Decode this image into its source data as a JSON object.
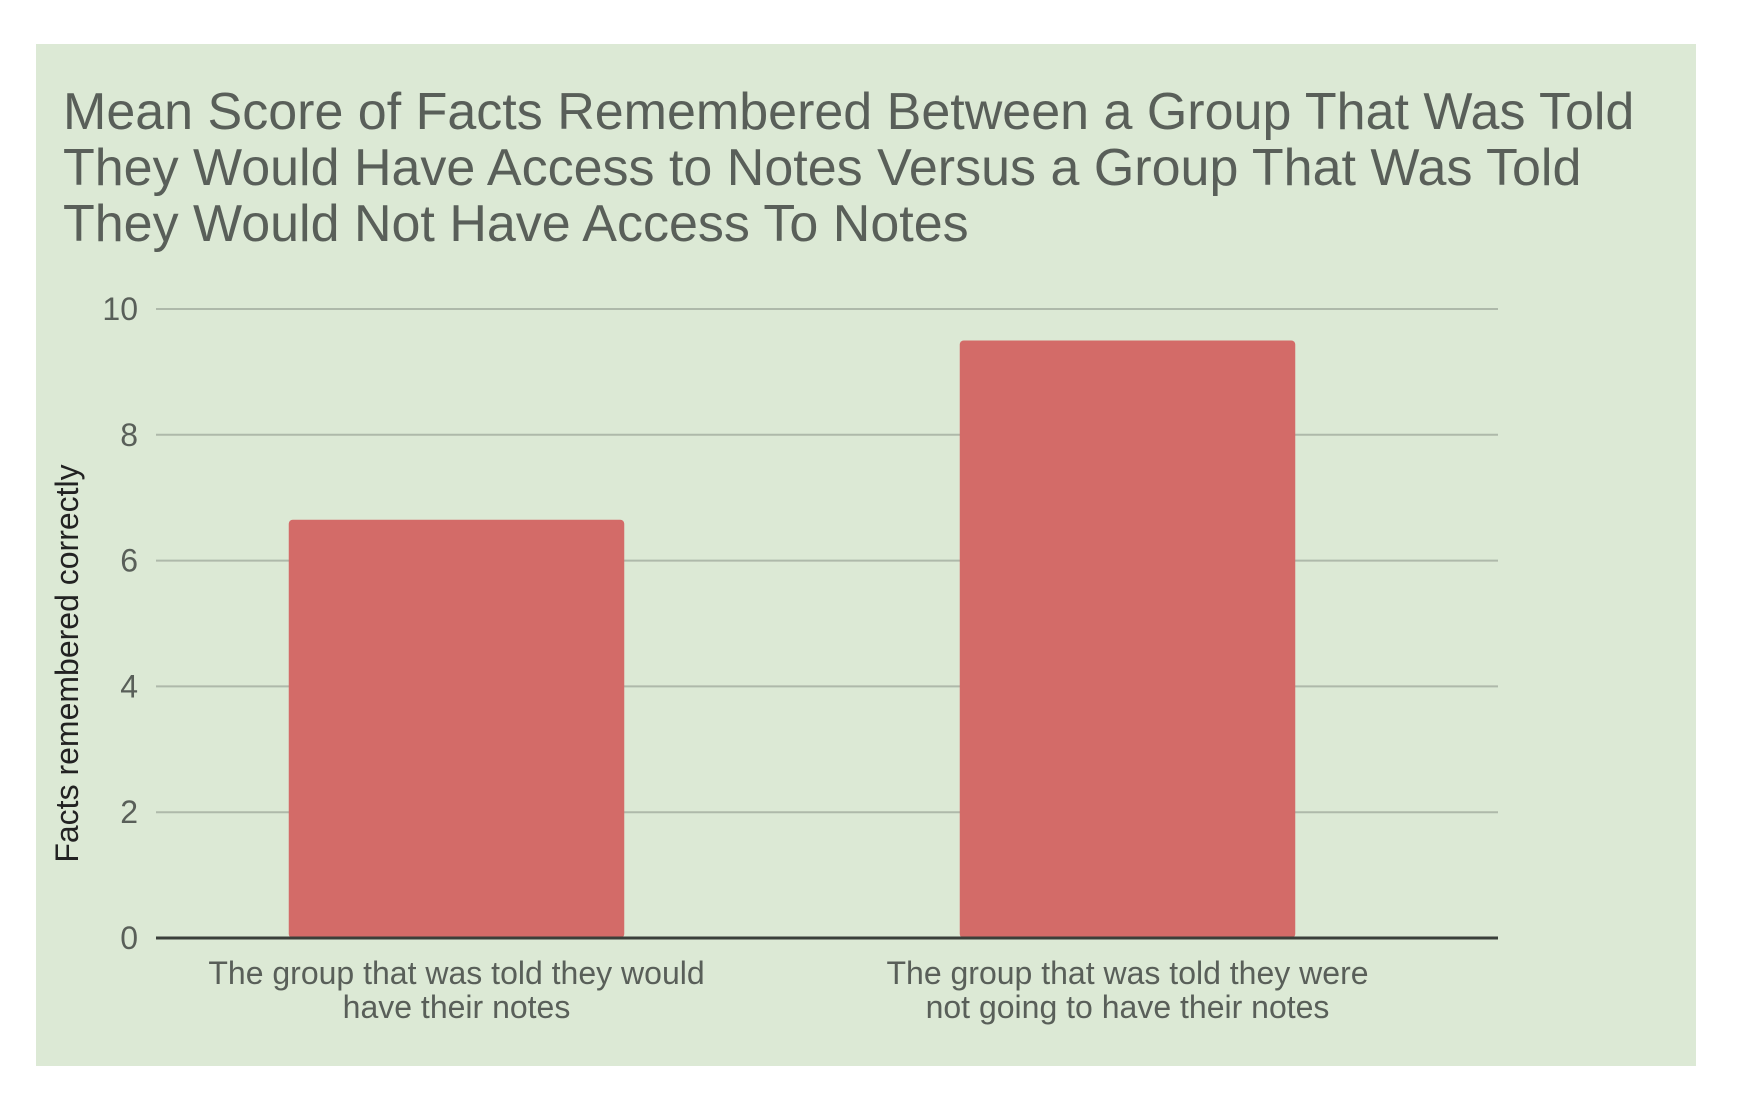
{
  "chart_data": {
    "type": "bar",
    "title": "Mean Score of Facts Remembered Between a Group That Was Told They Would Have Access to Notes Versus a Group That Was Told They Would Not Have Access To Notes",
    "categories": [
      [
        "The group that was told they would",
        "have their notes"
      ],
      [
        "The group that was told they were",
        "not going to have their notes"
      ]
    ],
    "values": [
      6.65,
      9.5
    ],
    "xlabel": "",
    "ylabel": "Facts remembered correctly",
    "ylim": [
      0,
      10
    ],
    "yticks": [
      0,
      2,
      4,
      6,
      8,
      10
    ],
    "grid": true,
    "legend": "none",
    "colors": {
      "background": "#dce9d5",
      "bar": "#d36b68",
      "grid": "#aeb9aa",
      "axis": "#3a3f3a",
      "text": "#595f59"
    }
  }
}
